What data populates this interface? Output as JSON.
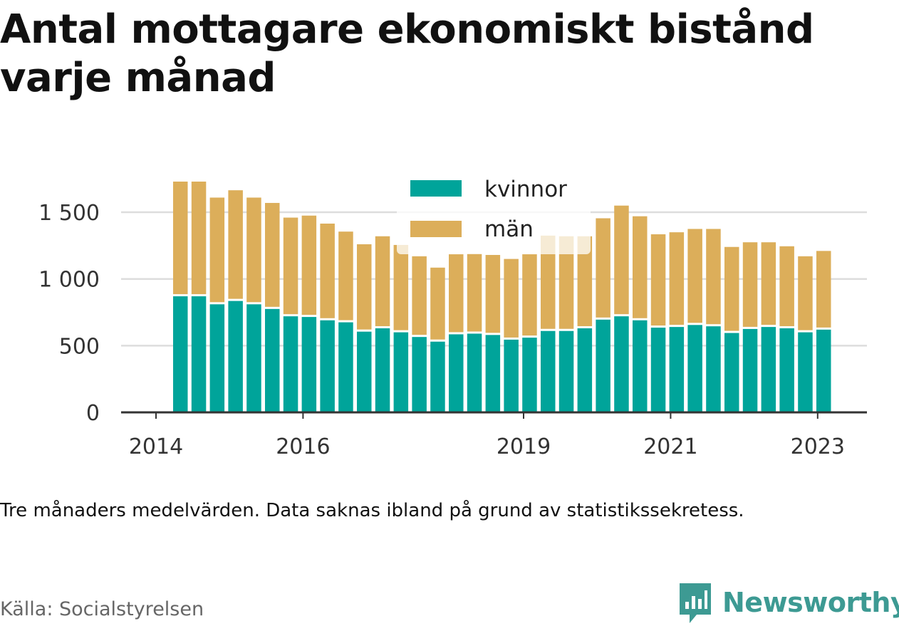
{
  "title": "Antal mottagare ekonomiskt bistånd varje månad",
  "note": "Tre månaders medelvärden. Data saknas ibland på grund av statistikssekretess.",
  "source": "Källa: Socialstyrelsen",
  "brand": "Newsworthy",
  "colors": {
    "kvinnor": "#00a49a",
    "man": "#dcae5a",
    "grid": "#dddddd",
    "axis": "#333333",
    "brand": "#3d9a93"
  },
  "chart_data": {
    "type": "bar",
    "stacked": true,
    "ylim": [
      0,
      1750
    ],
    "yticks": [
      0,
      500,
      1000,
      1500
    ],
    "ytick_labels": [
      "0",
      "500",
      "1 000",
      "1 500"
    ],
    "xticks": [
      {
        "label": "2014",
        "at": 0
      },
      {
        "label": "2016",
        "at": 8
      },
      {
        "label": "2019",
        "at": 20
      },
      {
        "label": "2021",
        "at": 28
      },
      {
        "label": "2023",
        "at": 36
      }
    ],
    "grid": true,
    "legend_position": "top-center",
    "series": [
      {
        "name": "kvinnor",
        "color": "#00a49a",
        "values": [
          870,
          870,
          810,
          835,
          810,
          775,
          720,
          715,
          690,
          675,
          605,
          630,
          600,
          565,
          530,
          585,
          590,
          580,
          545,
          560,
          610,
          610,
          630,
          695,
          720,
          690,
          635,
          640,
          655,
          645,
          595,
          625,
          640,
          630,
          600,
          620
        ]
      },
      {
        "name": "män",
        "color": "#dcae5a",
        "values": [
          860,
          860,
          800,
          830,
          800,
          795,
          740,
          760,
          725,
          680,
          655,
          690,
          655,
          605,
          555,
          600,
          600,
          600,
          605,
          625,
          715,
          710,
          690,
          760,
          830,
          780,
          700,
          710,
          720,
          730,
          645,
          650,
          635,
          615,
          570,
          590
        ]
      }
    ]
  }
}
